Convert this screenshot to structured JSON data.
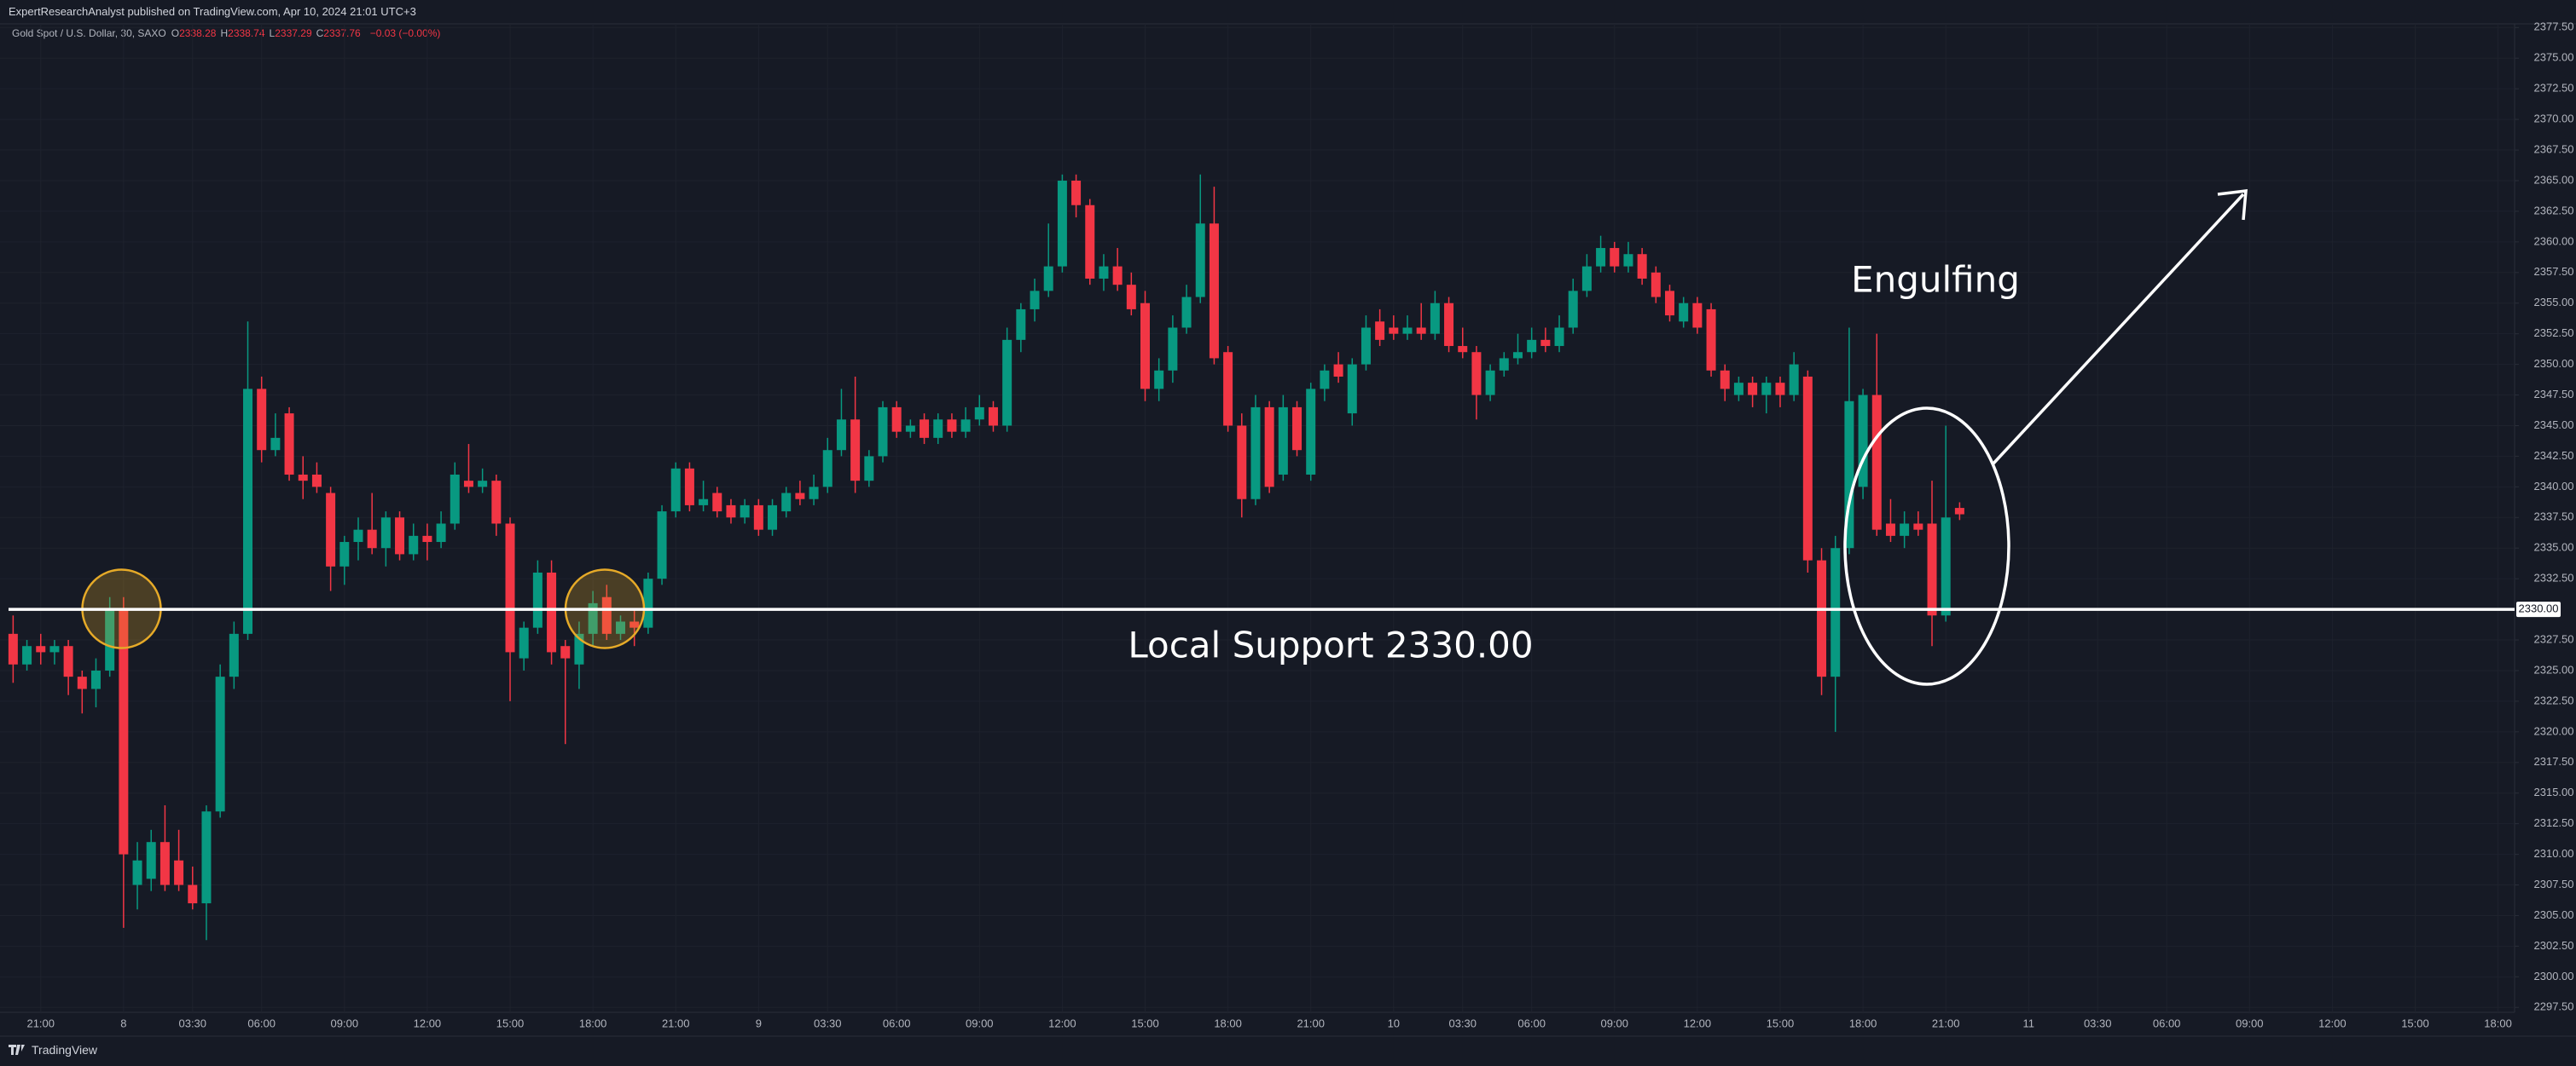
{
  "header": {
    "title": "ExpertResearchAnalyst published on TradingView.com, Apr 10, 2024 21:01 UTC+3"
  },
  "footer": {
    "brand": "TradingView"
  },
  "chart_data": {
    "type": "candlestick",
    "legend": {
      "symbol": "Gold Spot / U.S. Dollar, 30, SAXO",
      "ohlc": [
        {
          "key": "O",
          "value": 2338.28
        },
        {
          "key": "H",
          "value": 2338.74
        },
        {
          "key": "L",
          "value": 2337.29
        },
        {
          "key": "C",
          "value": 2337.76
        }
      ],
      "change": "−0.03 (−0.00%)"
    },
    "up_color": "#089981",
    "down_color": "#f23645",
    "grid": true,
    "candles": [
      [
        2328,
        2329.5,
        2324,
        2325.5
      ],
      [
        2325.5,
        2327.5,
        2325,
        2327
      ],
      [
        2327,
        2328,
        2325.5,
        2326.5
      ],
      [
        2326.5,
        2327.5,
        2325.5,
        2327
      ],
      [
        2327,
        2327.5,
        2323,
        2324.5
      ],
      [
        2324.5,
        2325,
        2321.5,
        2323.5
      ],
      [
        2323.5,
        2326,
        2322,
        2325
      ],
      [
        2325,
        2331,
        2324.5,
        2330
      ],
      [
        2330,
        2331,
        2304,
        2310
      ],
      [
        2307.5,
        2311,
        2305.5,
        2309.5
      ],
      [
        2308,
        2312,
        2307,
        2311
      ],
      [
        2311,
        2314,
        2307,
        2307.5
      ],
      [
        2309.5,
        2312,
        2307,
        2307.5
      ],
      [
        2307.5,
        2309,
        2305.5,
        2306
      ],
      [
        2306,
        2314,
        2303,
        2313.5
      ],
      [
        2313.5,
        2325.5,
        2313,
        2324.5
      ],
      [
        2324.5,
        2329,
        2323.5,
        2328
      ],
      [
        2328,
        2353.5,
        2327.5,
        2348
      ],
      [
        2348,
        2349,
        2342,
        2343
      ],
      [
        2343,
        2346,
        2342.5,
        2344
      ],
      [
        2346,
        2346.5,
        2340.5,
        2341
      ],
      [
        2341,
        2342.5,
        2339,
        2340.5
      ],
      [
        2341,
        2342,
        2339.5,
        2340
      ],
      [
        2339.5,
        2340,
        2331.5,
        2333.5
      ],
      [
        2333.5,
        2336,
        2332,
        2335.5
      ],
      [
        2335.5,
        2337.5,
        2334,
        2336.5
      ],
      [
        2336.5,
        2339.5,
        2334.5,
        2335
      ],
      [
        2335,
        2338,
        2333.5,
        2337.5
      ],
      [
        2337.5,
        2338,
        2334,
        2334.5
      ],
      [
        2334.5,
        2337,
        2334,
        2336
      ],
      [
        2336,
        2337,
        2334,
        2335.5
      ],
      [
        2335.5,
        2338,
        2335,
        2337
      ],
      [
        2337,
        2342,
        2336.5,
        2341
      ],
      [
        2340.5,
        2343.5,
        2339.5,
        2340
      ],
      [
        2340,
        2341.5,
        2339.5,
        2340.5
      ],
      [
        2340.5,
        2341,
        2336,
        2337
      ],
      [
        2337,
        2337.5,
        2322.5,
        2326.5
      ],
      [
        2326,
        2329,
        2325,
        2328.5
      ],
      [
        2328.5,
        2334,
        2328,
        2333
      ],
      [
        2333,
        2334,
        2325.5,
        2326.5
      ],
      [
        2327,
        2327.5,
        2319,
        2326
      ],
      [
        2325.5,
        2329,
        2323.5,
        2328
      ],
      [
        2328,
        2331.5,
        2327,
        2330.5
      ],
      [
        2331,
        2332,
        2327.5,
        2328
      ],
      [
        2328,
        2329.5,
        2327.5,
        2329
      ],
      [
        2329,
        2330,
        2327,
        2328.5
      ],
      [
        2328.5,
        2333,
        2328,
        2332.5
      ],
      [
        2332.5,
        2338.5,
        2332,
        2338
      ],
      [
        2338,
        2342,
        2337.5,
        2341.5
      ],
      [
        2341.5,
        2342,
        2338,
        2338.5
      ],
      [
        2338.5,
        2340.5,
        2338,
        2339
      ],
      [
        2339.5,
        2340,
        2337.5,
        2338
      ],
      [
        2338.5,
        2339,
        2337,
        2337.5
      ],
      [
        2337.5,
        2339,
        2337,
        2338.5
      ],
      [
        2338.5,
        2339,
        2336,
        2336.5
      ],
      [
        2336.5,
        2339,
        2336,
        2338.5
      ],
      [
        2338,
        2340,
        2337.5,
        2339.5
      ],
      [
        2339.5,
        2340.5,
        2338.5,
        2339
      ],
      [
        2339,
        2341,
        2338.5,
        2340
      ],
      [
        2340,
        2344,
        2339.5,
        2343
      ],
      [
        2343,
        2348,
        2342.5,
        2345.5
      ],
      [
        2345.5,
        2349,
        2339.5,
        2340.5
      ],
      [
        2340.5,
        2343,
        2340,
        2342.5
      ],
      [
        2342.5,
        2347,
        2342,
        2346.5
      ],
      [
        2346.5,
        2347,
        2344,
        2344.5
      ],
      [
        2344.5,
        2345.5,
        2344,
        2345
      ],
      [
        2345.5,
        2346,
        2343.5,
        2344
      ],
      [
        2344,
        2346,
        2343.5,
        2345.5
      ],
      [
        2345.5,
        2346,
        2344,
        2344.5
      ],
      [
        2344.5,
        2346.5,
        2344,
        2345.5
      ],
      [
        2345.5,
        2347.5,
        2345,
        2346.5
      ],
      [
        2346.5,
        2347,
        2344.5,
        2345
      ],
      [
        2345,
        2353,
        2344.5,
        2352
      ],
      [
        2352,
        2355,
        2351,
        2354.5
      ],
      [
        2354.5,
        2357,
        2353.5,
        2356
      ],
      [
        2356,
        2361.5,
        2355.5,
        2358
      ],
      [
        2358,
        2365.5,
        2357.5,
        2365
      ],
      [
        2365,
        2365.5,
        2362,
        2363
      ],
      [
        2363,
        2363.5,
        2356.5,
        2357
      ],
      [
        2357,
        2359,
        2356,
        2358
      ],
      [
        2358,
        2359.5,
        2356,
        2356.5
      ],
      [
        2356.5,
        2357.5,
        2354,
        2354.5
      ],
      [
        2355,
        2356,
        2347,
        2348
      ],
      [
        2348,
        2350.5,
        2347,
        2349.5
      ],
      [
        2349.5,
        2354,
        2348.5,
        2353
      ],
      [
        2353,
        2356.5,
        2352.5,
        2355.5
      ],
      [
        2355.5,
        2365.5,
        2355,
        2361.5
      ],
      [
        2361.5,
        2364.5,
        2350,
        2350.5
      ],
      [
        2351,
        2351.5,
        2344.5,
        2345
      ],
      [
        2345,
        2346,
        2337.5,
        2339
      ],
      [
        2339,
        2347.5,
        2338.5,
        2346.5
      ],
      [
        2346.5,
        2347,
        2339.5,
        2340
      ],
      [
        2341,
        2347.5,
        2340.5,
        2346.5
      ],
      [
        2346.5,
        2347,
        2342.5,
        2343
      ],
      [
        2341,
        2348.5,
        2340.5,
        2348
      ],
      [
        2348,
        2350,
        2347,
        2349.5
      ],
      [
        2350,
        2351,
        2348.5,
        2349
      ],
      [
        2346,
        2350.5,
        2345,
        2350
      ],
      [
        2350,
        2354,
        2349.5,
        2353
      ],
      [
        2353.5,
        2354.5,
        2351.5,
        2352
      ],
      [
        2353,
        2354,
        2352,
        2352.5
      ],
      [
        2352.5,
        2354,
        2352,
        2353
      ],
      [
        2353,
        2355,
        2352,
        2352.5
      ],
      [
        2352.5,
        2356,
        2352,
        2355
      ],
      [
        2355,
        2355.5,
        2351,
        2351.5
      ],
      [
        2351.5,
        2353,
        2350.5,
        2351
      ],
      [
        2351,
        2351.5,
        2345.5,
        2347.5
      ],
      [
        2347.5,
        2350,
        2347,
        2349.5
      ],
      [
        2349.5,
        2351,
        2349,
        2350.5
      ],
      [
        2350.5,
        2352.5,
        2350,
        2351
      ],
      [
        2351,
        2353,
        2350.5,
        2352
      ],
      [
        2352,
        2353,
        2351,
        2351.5
      ],
      [
        2351.5,
        2354,
        2351,
        2353
      ],
      [
        2353,
        2357,
        2352.5,
        2356
      ],
      [
        2356,
        2359,
        2355.5,
        2358
      ],
      [
        2358,
        2360.5,
        2357.5,
        2359.5
      ],
      [
        2359.5,
        2360,
        2357.5,
        2358
      ],
      [
        2358,
        2360,
        2357.5,
        2359
      ],
      [
        2359,
        2359.5,
        2356.5,
        2357
      ],
      [
        2357.5,
        2358,
        2355,
        2355.5
      ],
      [
        2356,
        2356.5,
        2353.5,
        2354
      ],
      [
        2353.5,
        2355.5,
        2353,
        2355
      ],
      [
        2355,
        2355.5,
        2352.5,
        2353
      ],
      [
        2354.5,
        2355,
        2349,
        2349.5
      ],
      [
        2349.5,
        2350,
        2347,
        2348
      ],
      [
        2347.5,
        2349,
        2347,
        2348.5
      ],
      [
        2348.5,
        2349,
        2346.5,
        2347.5
      ],
      [
        2347.5,
        2349,
        2346,
        2348.5
      ],
      [
        2348.5,
        2349,
        2346.5,
        2347.5
      ],
      [
        2347.5,
        2351,
        2347,
        2350
      ],
      [
        2349,
        2349.5,
        2333,
        2334
      ],
      [
        2334,
        2335,
        2323,
        2324.5
      ],
      [
        2324.5,
        2336,
        2320,
        2335
      ],
      [
        2335,
        2353,
        2334.5,
        2347
      ],
      [
        2340,
        2348,
        2339,
        2347.5
      ],
      [
        2347.5,
        2352.5,
        2336,
        2336.5
      ],
      [
        2337,
        2339,
        2335.5,
        2336
      ],
      [
        2336,
        2338,
        2335,
        2337
      ],
      [
        2337,
        2338,
        2336,
        2336.5
      ],
      [
        2337,
        2340.5,
        2327,
        2329.5
      ],
      [
        2329.5,
        2345,
        2329,
        2337.5
      ],
      [
        2338.28,
        2338.74,
        2337.29,
        2337.76
      ]
    ],
    "xlim": [
      -0.95,
      181.2
    ],
    "xticks": [
      {
        "value": 2,
        "label": "21:00"
      },
      {
        "value": 8,
        "label": "8"
      },
      {
        "value": 13,
        "label": "03:30"
      },
      {
        "value": 18,
        "label": "06:00"
      },
      {
        "value": 24,
        "label": "09:00"
      },
      {
        "value": 30,
        "label": "12:00"
      },
      {
        "value": 36,
        "label": "15:00"
      },
      {
        "value": 42,
        "label": "18:00"
      },
      {
        "value": 48,
        "label": "21:00"
      },
      {
        "value": 54,
        "label": "9"
      },
      {
        "value": 59,
        "label": "03:30"
      },
      {
        "value": 64,
        "label": "06:00"
      },
      {
        "value": 70,
        "label": "09:00"
      },
      {
        "value": 76,
        "label": "12:00"
      },
      {
        "value": 82,
        "label": "15:00"
      },
      {
        "value": 88,
        "label": "18:00"
      },
      {
        "value": 94,
        "label": "21:00"
      },
      {
        "value": 100,
        "label": "10"
      },
      {
        "value": 105,
        "label": "03:30"
      },
      {
        "value": 110,
        "label": "06:00"
      },
      {
        "value": 116,
        "label": "09:00"
      },
      {
        "value": 122,
        "label": "12:00"
      },
      {
        "value": 128,
        "label": "15:00"
      },
      {
        "value": 134,
        "label": "18:00"
      },
      {
        "value": 140,
        "label": "21:00"
      },
      {
        "value": 146,
        "label": "11"
      },
      {
        "value": 151,
        "label": "03:30"
      },
      {
        "value": 156,
        "label": "06:00"
      },
      {
        "value": 162,
        "label": "09:00"
      },
      {
        "value": 168,
        "label": "12:00"
      },
      {
        "value": 174,
        "label": "15:00"
      },
      {
        "value": 180,
        "label": "18:00"
      }
    ],
    "ylim": [
      2297.1,
      2377.8
    ],
    "yticks": [
      {
        "value": 2297.5,
        "label": "2297.50"
      },
      {
        "value": 2300,
        "label": "2300.00"
      },
      {
        "value": 2302.5,
        "label": "2302.50"
      },
      {
        "value": 2305,
        "label": "2305.00"
      },
      {
        "value": 2307.5,
        "label": "2307.50"
      },
      {
        "value": 2310,
        "label": "2310.00"
      },
      {
        "value": 2312.5,
        "label": "2312.50"
      },
      {
        "value": 2315,
        "label": "2315.00"
      },
      {
        "value": 2317.5,
        "label": "2317.50"
      },
      {
        "value": 2320,
        "label": "2320.00"
      },
      {
        "value": 2322.5,
        "label": "2322.50"
      },
      {
        "value": 2325,
        "label": "2325.00"
      },
      {
        "value": 2327.5,
        "label": "2327.50"
      },
      {
        "value": 2332.5,
        "label": "2332.50"
      },
      {
        "value": 2335,
        "label": "2335.00"
      },
      {
        "value": 2337.5,
        "label": "2337.50"
      },
      {
        "value": 2340,
        "label": "2340.00"
      },
      {
        "value": 2342.5,
        "label": "2342.50"
      },
      {
        "value": 2345,
        "label": "2345.00"
      },
      {
        "value": 2347.5,
        "label": "2347.50"
      },
      {
        "value": 2350,
        "label": "2350.00"
      },
      {
        "value": 2352.5,
        "label": "2352.50"
      },
      {
        "value": 2355,
        "label": "2355.00"
      },
      {
        "value": 2357.5,
        "label": "2357.50"
      },
      {
        "value": 2360,
        "label": "2360.00"
      },
      {
        "value": 2362.5,
        "label": "2362.50"
      },
      {
        "value": 2365,
        "label": "2365.00"
      },
      {
        "value": 2367.5,
        "label": "2367.50"
      },
      {
        "value": 2370,
        "label": "2370.00"
      },
      {
        "value": 2372.5,
        "label": "2372.50"
      },
      {
        "value": 2375,
        "label": "2375.00"
      },
      {
        "value": 2377.5,
        "label": "2377.50"
      }
    ],
    "support": {
      "value": 2330,
      "label": "2330.00",
      "text": "Local Support 2330.00"
    },
    "annotations": {
      "engulfing": "Engulfing"
    }
  }
}
